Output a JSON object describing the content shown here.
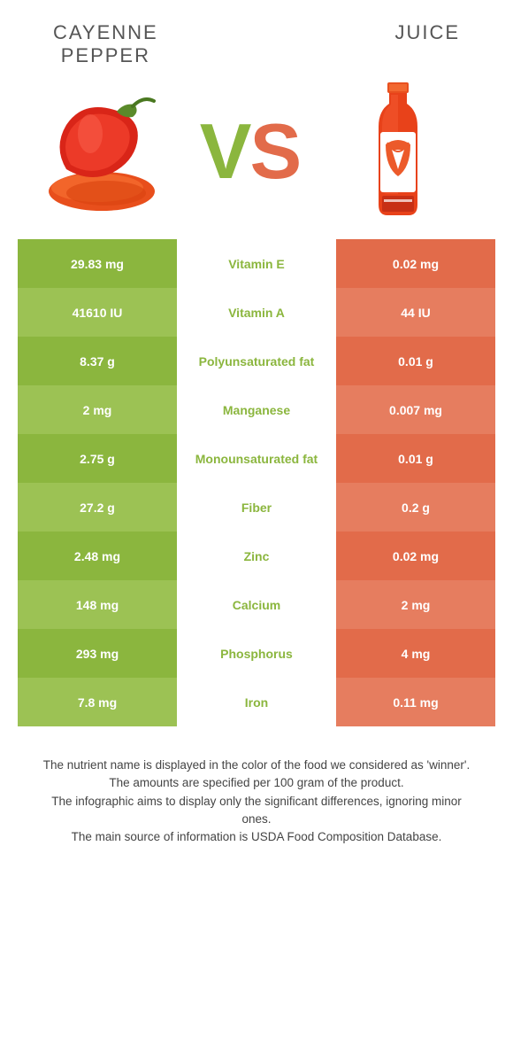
{
  "header": {
    "left_title": "CAYENNE\nPEPPER",
    "right_title": "JUICE"
  },
  "vs": {
    "text": "VS",
    "left_color": "#8bb63e",
    "right_color": "#e26b4a"
  },
  "colors": {
    "left_col": "#8bb63e",
    "left_col_alt": "#9cc254",
    "right_col": "#e26b4a",
    "right_col_alt": "#e67d5f",
    "mid_text_default": "#8bb63e",
    "title_color": "#555555",
    "footnote_color": "#444444"
  },
  "table": {
    "rows": [
      {
        "left": "29.83 mg",
        "mid": "Vitamin E",
        "right": "0.02 mg",
        "mid_color": "#8bb63e"
      },
      {
        "left": "41610 IU",
        "mid": "Vitamin A",
        "right": "44 IU",
        "mid_color": "#8bb63e"
      },
      {
        "left": "8.37 g",
        "mid": "Polyunsaturated fat",
        "right": "0.01 g",
        "mid_color": "#8bb63e"
      },
      {
        "left": "2 mg",
        "mid": "Manganese",
        "right": "0.007 mg",
        "mid_color": "#8bb63e"
      },
      {
        "left": "2.75 g",
        "mid": "Monounsaturated fat",
        "right": "0.01 g",
        "mid_color": "#8bb63e"
      },
      {
        "left": "27.2 g",
        "mid": "Fiber",
        "right": "0.2 g",
        "mid_color": "#8bb63e"
      },
      {
        "left": "2.48 mg",
        "mid": "Zinc",
        "right": "0.02 mg",
        "mid_color": "#8bb63e"
      },
      {
        "left": "148 mg",
        "mid": "Calcium",
        "right": "2 mg",
        "mid_color": "#8bb63e"
      },
      {
        "left": "293 mg",
        "mid": "Phosphorus",
        "right": "4 mg",
        "mid_color": "#8bb63e"
      },
      {
        "left": "7.8 mg",
        "mid": "Iron",
        "right": "0.11 mg",
        "mid_color": "#8bb63e"
      }
    ]
  },
  "footnotes": [
    "The nutrient name is displayed in the color of the food we considered as 'winner'.",
    "The amounts are specified per 100 gram of the product.",
    "The infographic aims to display only the significant differences, ignoring minor ones.",
    "The main source of information is USDA Food Composition Database."
  ]
}
